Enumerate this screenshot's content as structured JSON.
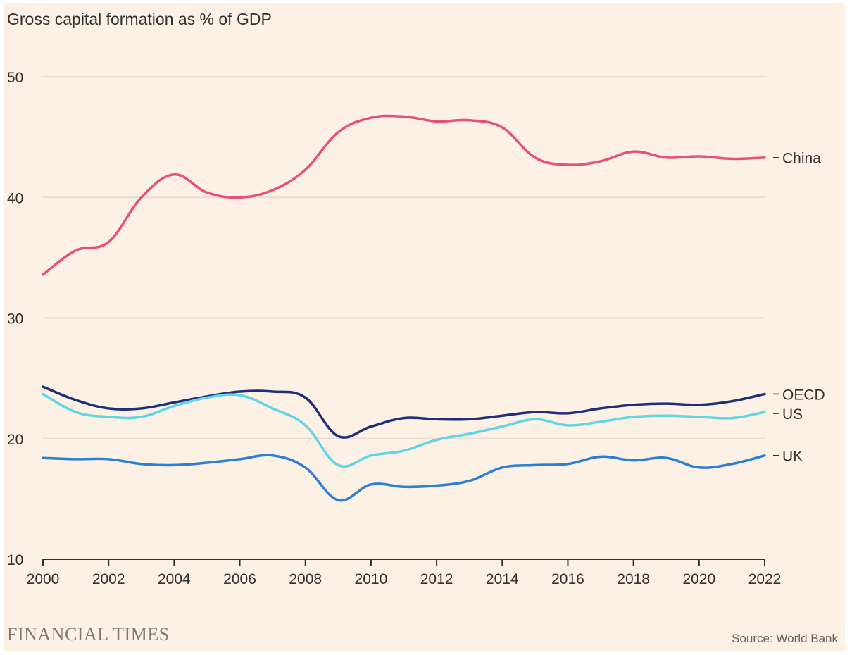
{
  "title": "Gross capital formation as % of GDP",
  "brand": "FINANCIAL TIMES",
  "source": "Source: World Bank",
  "colors": {
    "background": "#fdf1e6",
    "grid": "#e8dbd0",
    "axis": "#33302e",
    "text": "#33302e"
  },
  "chart_data": {
    "type": "line",
    "title": "Gross capital formation as % of GDP",
    "xlabel": "",
    "ylabel": "",
    "xlim": [
      2000,
      2022
    ],
    "ylim": [
      10,
      50
    ],
    "yticks": [
      10,
      20,
      30,
      40,
      50
    ],
    "xticks": [
      2000,
      2002,
      2004,
      2006,
      2008,
      2010,
      2012,
      2014,
      2016,
      2018,
      2020,
      2022
    ],
    "grid": "horizontal",
    "legend": "direct labels at right",
    "x": [
      2000,
      2001,
      2002,
      2003,
      2004,
      2005,
      2006,
      2007,
      2008,
      2009,
      2010,
      2011,
      2012,
      2013,
      2014,
      2015,
      2016,
      2017,
      2018,
      2019,
      2020,
      2021,
      2022
    ],
    "series": [
      {
        "name": "China",
        "color": "#e8507a",
        "values": [
          33.6,
          35.6,
          36.3,
          40.0,
          41.9,
          40.4,
          40.0,
          40.6,
          42.3,
          45.4,
          46.6,
          46.7,
          46.3,
          46.4,
          45.8,
          43.3,
          42.7,
          43.0,
          43.8,
          43.3,
          43.4,
          43.2,
          43.3
        ]
      },
      {
        "name": "OECD",
        "color": "#1f2f7a",
        "values": [
          24.3,
          23.2,
          22.5,
          22.5,
          23.0,
          23.5,
          23.9,
          23.9,
          23.4,
          20.2,
          21.0,
          21.7,
          21.6,
          21.6,
          21.9,
          22.2,
          22.1,
          22.5,
          22.8,
          22.9,
          22.8,
          23.1,
          23.7
        ]
      },
      {
        "name": "US",
        "color": "#5fd5e6",
        "values": [
          23.7,
          22.2,
          21.8,
          21.8,
          22.7,
          23.4,
          23.6,
          22.5,
          21.1,
          17.8,
          18.6,
          19.0,
          19.9,
          20.4,
          21.0,
          21.6,
          21.1,
          21.4,
          21.8,
          21.9,
          21.8,
          21.7,
          22.2
        ]
      },
      {
        "name": "UK",
        "color": "#2b7fd4",
        "values": [
          18.4,
          18.3,
          18.3,
          17.9,
          17.8,
          18.0,
          18.3,
          18.6,
          17.6,
          14.9,
          16.2,
          16.0,
          16.1,
          16.5,
          17.6,
          17.8,
          17.9,
          18.5,
          18.2,
          18.4,
          17.6,
          17.9,
          18.6
        ]
      }
    ]
  }
}
